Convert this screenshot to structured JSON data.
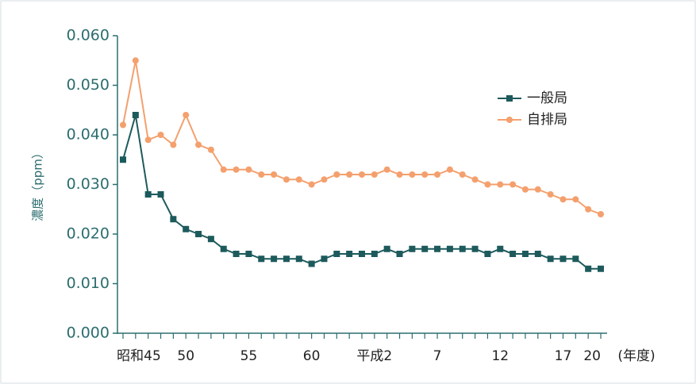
{
  "chart_data": {
    "type": "line",
    "y_label": "濃度（ppm）",
    "x_label": "(年度)",
    "categories": [
      "昭和45",
      null,
      null,
      null,
      null,
      "50",
      null,
      null,
      null,
      null,
      "55",
      null,
      null,
      null,
      null,
      "60",
      null,
      null,
      null,
      null,
      "平成2",
      null,
      null,
      null,
      null,
      "7",
      null,
      null,
      null,
      null,
      "12",
      null,
      null,
      null,
      null,
      "17",
      null,
      null,
      "20"
    ],
    "series": [
      {
        "name": "一般局",
        "color": "#1d5a5c",
        "marker": "square",
        "values": [
          0.035,
          0.044,
          0.028,
          0.028,
          0.023,
          0.021,
          0.02,
          0.019,
          0.017,
          0.016,
          0.016,
          0.015,
          0.015,
          0.015,
          0.015,
          0.014,
          0.015,
          0.016,
          0.016,
          0.016,
          0.016,
          0.017,
          0.016,
          0.017,
          0.017,
          0.017,
          0.017,
          0.017,
          0.017,
          0.016,
          0.017,
          0.016,
          0.016,
          0.016,
          0.015,
          0.015,
          0.015,
          0.013,
          0.013
        ]
      },
      {
        "name": "自排局",
        "color": "#f4a06e",
        "marker": "circle",
        "values": [
          0.042,
          0.055,
          0.039,
          0.04,
          0.038,
          0.044,
          0.038,
          0.037,
          0.033,
          0.033,
          0.033,
          0.032,
          0.032,
          0.031,
          0.031,
          0.03,
          0.031,
          0.032,
          0.032,
          0.032,
          0.032,
          0.033,
          0.032,
          0.032,
          0.032,
          0.032,
          0.033,
          0.032,
          0.031,
          0.03,
          0.03,
          0.03,
          0.029,
          0.029,
          0.028,
          0.027,
          0.027,
          0.025,
          0.024
        ]
      }
    ],
    "ylim": [
      0,
      0.06
    ],
    "yticks": [
      {
        "value": 0,
        "label": "0.000"
      },
      {
        "value": 0.01,
        "label": "0.010"
      },
      {
        "value": 0.02,
        "label": "0.020"
      },
      {
        "value": 0.03,
        "label": "0.030"
      },
      {
        "value": 0.04,
        "label": "0.040"
      },
      {
        "value": 0.05,
        "label": "0.050"
      },
      {
        "value": 0.06,
        "label": "0.060"
      }
    ],
    "legend": "upper right"
  }
}
